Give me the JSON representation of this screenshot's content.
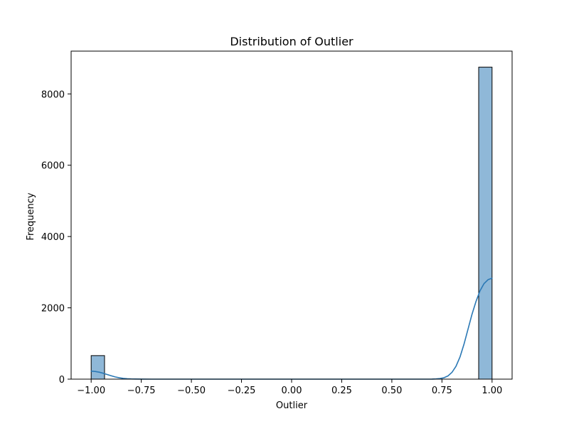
{
  "chart_data": {
    "type": "histogram",
    "title": "Distribution of Outlier",
    "xlabel": "Outlier",
    "ylabel": "Frequency",
    "xlim": [
      -1.1,
      1.1
    ],
    "ylim": [
      0,
      9200
    ],
    "x_ticks": [
      -1.0,
      -0.75,
      -0.5,
      -0.25,
      0.0,
      0.25,
      0.5,
      0.75,
      1.0
    ],
    "x_tick_labels": [
      "−1.00",
      "−0.75",
      "−0.50",
      "−0.25",
      "0.00",
      "0.25",
      "0.50",
      "0.75",
      "1.00"
    ],
    "y_ticks": [
      0,
      2000,
      4000,
      6000,
      8000
    ],
    "y_tick_labels": [
      "0",
      "2000",
      "4000",
      "6000",
      "8000"
    ],
    "grid": false,
    "bins": [
      {
        "x0": -1.0,
        "x1": -0.9333,
        "count": 660
      },
      {
        "x0": 0.9333,
        "x1": 1.0,
        "count": 8750
      }
    ],
    "kde": {
      "x": [
        -1.0,
        -0.98,
        -0.96,
        -0.94,
        -0.92,
        -0.9,
        -0.88,
        -0.86,
        -0.84,
        -0.82,
        -0.8,
        -0.78,
        -0.75,
        -0.7,
        -0.6,
        0.0,
        0.6,
        0.7,
        0.72,
        0.74,
        0.76,
        0.78,
        0.8,
        0.82,
        0.84,
        0.86,
        0.88,
        0.9,
        0.92,
        0.94,
        0.96,
        0.98,
        1.0
      ],
      "y": [
        225,
        215,
        195,
        165,
        130,
        95,
        62,
        38,
        22,
        12,
        6,
        3,
        1,
        0,
        0,
        0,
        0,
        2,
        6,
        16,
        40,
        90,
        190,
        360,
        620,
        980,
        1400,
        1820,
        2180,
        2480,
        2680,
        2790,
        2830
      ]
    },
    "colors": {
      "bar_fill": "#8fb8d8",
      "bar_edge": "#000000",
      "kde_line": "#2a78b5"
    }
  }
}
